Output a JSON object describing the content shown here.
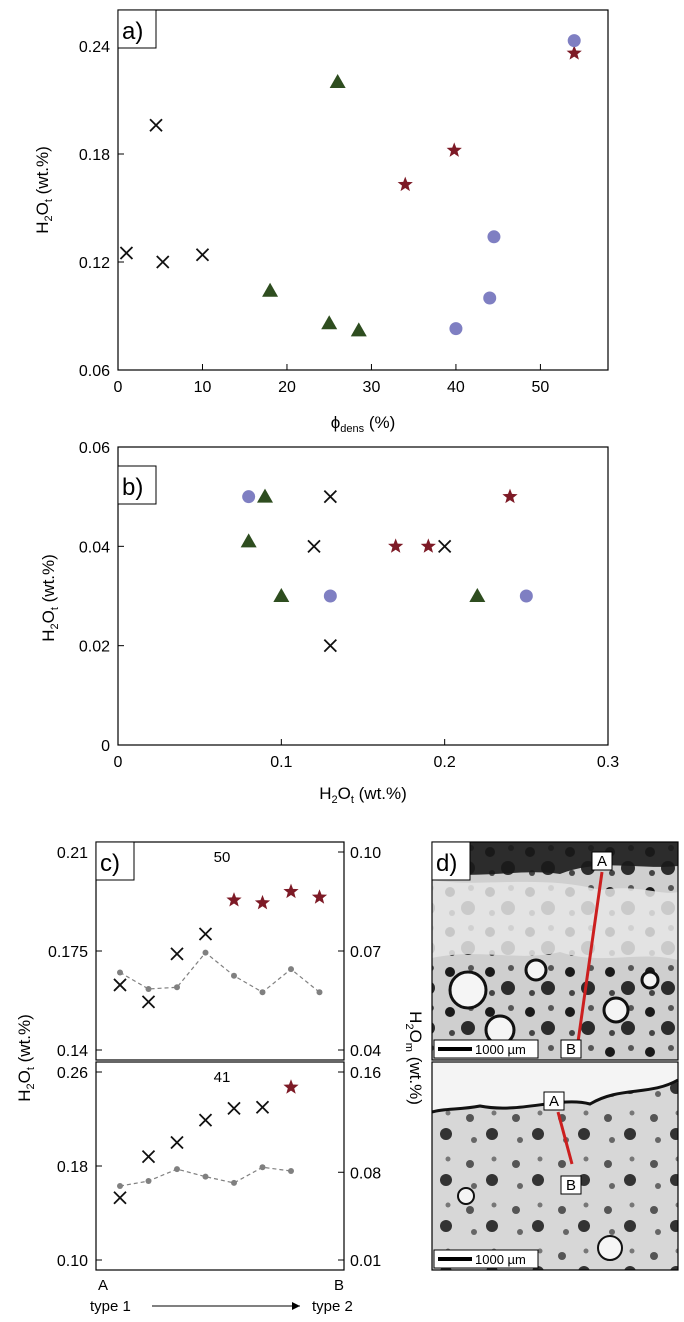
{
  "colors": {
    "cross": "#111111",
    "triangle": "#2e4d1f",
    "star": "#7d1a26",
    "circle": "#7f7fc2",
    "grey": "#808080",
    "red_line": "#cc1f1f"
  },
  "chart_data": [
    {
      "panel": "a)",
      "type": "scatter",
      "xlabel": "ϕ",
      "xlabel_sub": "dens",
      "xlabel_unit": " (%)",
      "ylabel": "H",
      "ylabel_sub1": "2",
      "ylabel_mid": "O",
      "ylabel_sub2": "t",
      "ylabel_unit": " (wt.%)",
      "xlim": [
        0,
        58
      ],
      "ylim": [
        0.06,
        0.26
      ],
      "xticks": [
        0,
        10,
        20,
        30,
        40,
        50
      ],
      "yticks": [
        0.06,
        0.12,
        0.18,
        0.24
      ],
      "series": [
        {
          "marker": "cross",
          "points": [
            [
              1,
              0.125
            ],
            [
              4.5,
              0.196
            ],
            [
              5.3,
              0.12
            ],
            [
              10,
              0.124
            ]
          ]
        },
        {
          "marker": "triangle",
          "points": [
            [
              18,
              0.104
            ],
            [
              25,
              0.086
            ],
            [
              26,
              0.22
            ],
            [
              28.5,
              0.082
            ]
          ]
        },
        {
          "marker": "star",
          "points": [
            [
              34,
              0.163
            ],
            [
              39.8,
              0.182
            ],
            [
              54,
              0.236
            ]
          ]
        },
        {
          "marker": "circle",
          "points": [
            [
              40,
              0.083
            ],
            [
              44,
              0.1
            ],
            [
              44.5,
              0.134
            ],
            [
              54,
              0.243
            ]
          ]
        }
      ]
    },
    {
      "panel": "b)",
      "type": "scatter",
      "xlabel": "H",
      "xlabel_sub1": "2",
      "xlabel_mid": "O",
      "xlabel_sub2": "t",
      "xlabel_unit": " (wt.%)",
      "ylabel": "H",
      "ylabel_sub1": "2",
      "ylabel_mid": "O",
      "ylabel_sub2": "t",
      "ylabel_unit": " (wt.%)",
      "xlim": [
        0,
        0.3
      ],
      "ylim": [
        0,
        0.06
      ],
      "xticks": [
        0,
        0.1,
        0.2,
        0.3
      ],
      "yticks": [
        0,
        0.02,
        0.04,
        0.06
      ],
      "series": [
        {
          "marker": "cross",
          "points": [
            [
              0.12,
              0.04
            ],
            [
              0.13,
              0.05
            ],
            [
              0.13,
              0.02
            ],
            [
              0.2,
              0.04
            ]
          ]
        },
        {
          "marker": "triangle",
          "points": [
            [
              0.08,
              0.041
            ],
            [
              0.09,
              0.05
            ],
            [
              0.1,
              0.03
            ],
            [
              0.22,
              0.03
            ]
          ]
        },
        {
          "marker": "star",
          "points": [
            [
              0.17,
              0.04
            ],
            [
              0.19,
              0.04
            ],
            [
              0.24,
              0.05
            ]
          ]
        },
        {
          "marker": "circle",
          "points": [
            [
              0.08,
              0.05
            ],
            [
              0.13,
              0.03
            ],
            [
              0.25,
              0.03
            ]
          ]
        }
      ]
    },
    {
      "panel": "c)",
      "type": "line",
      "left_ylabel": "H",
      "left_ylabel_sub1": "2",
      "left_ylabel_mid": "O",
      "left_ylabel_sub2": "t",
      "left_ylabel_unit": " (wt.%)",
      "right_ylabel": "H",
      "right_ylabel_sub1": "2",
      "right_ylabel_mid": "O",
      "right_ylabel_sub2": "m",
      "right_ylabel_unit": " (wt.%)",
      "x_start_label": "A",
      "x_end_label": "B",
      "x_start_caption": "type 1",
      "x_end_caption": "type 2",
      "x": [
        1,
        2,
        3,
        4,
        5,
        6,
        7,
        8
      ],
      "subplots": [
        {
          "label": "50",
          "left_ylim": [
            0.14,
            0.21
          ],
          "left_yticks": [
            "0.14",
            "0.175",
            "0.21"
          ],
          "right_ylim": [
            0.04,
            0.1
          ],
          "right_yticks": [
            "0.04",
            "0.07",
            "0.10"
          ],
          "cross_left": [
            [
              1,
              0.163
            ],
            [
              2,
              0.157
            ],
            [
              3,
              0.174
            ],
            [
              4,
              0.181
            ]
          ],
          "star_left": [
            [
              5,
              0.193
            ],
            [
              6,
              0.192
            ],
            [
              7,
              0.196
            ],
            [
              8,
              0.194
            ]
          ],
          "grey_right": [
            0.0635,
            0.0585,
            0.059,
            0.0695,
            0.0625,
            0.0575,
            0.0645,
            0.0575
          ]
        },
        {
          "label": "41",
          "left_ylim": [
            0.1,
            0.26
          ],
          "left_yticks": [
            "0.10",
            "0.18",
            "0.26"
          ],
          "right_ylim": [
            0.01,
            0.16
          ],
          "right_yticks": [
            "0.01",
            "0.08",
            "0.16"
          ],
          "cross_left": [
            [
              1,
              0.153
            ],
            [
              2,
              0.188
            ],
            [
              3,
              0.2
            ],
            [
              4,
              0.219
            ],
            [
              5,
              0.229
            ],
            [
              6,
              0.23
            ]
          ],
          "star_left": [
            [
              7,
              0.247
            ]
          ],
          "grey_right": [
            0.069,
            0.073,
            0.0825,
            0.0765,
            0.0715,
            0.084,
            0.081
          ]
        }
      ]
    }
  ],
  "panel_d": {
    "label": "d)",
    "top": {
      "point_a": "A",
      "point_b": "B",
      "scalebar": "1000 µm"
    },
    "bottom": {
      "point_a": "A",
      "point_b": "B",
      "scalebar": "1000 µm"
    }
  }
}
